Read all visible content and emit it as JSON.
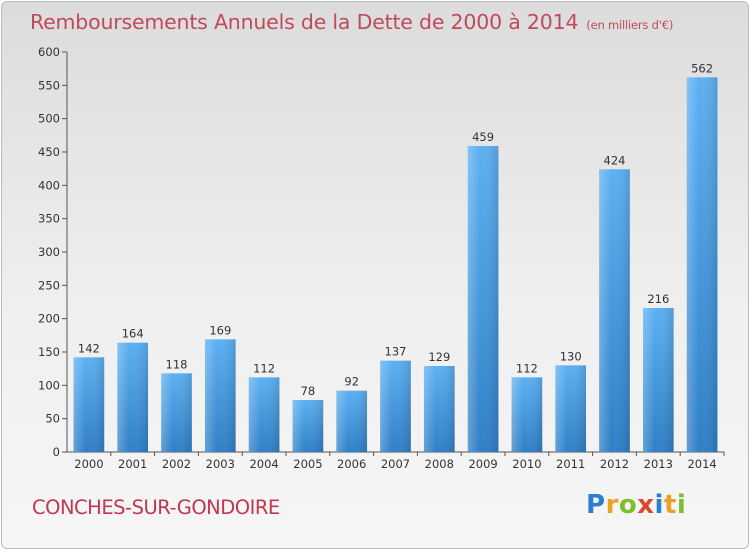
{
  "chart_data": {
    "type": "bar",
    "title": "Remboursements Annuels de la Dette de 2000 à 2014",
    "subtitle": "(en milliers d'€)",
    "categories": [
      "2000",
      "2001",
      "2002",
      "2003",
      "2004",
      "2005",
      "2006",
      "2007",
      "2008",
      "2009",
      "2010",
      "2011",
      "2012",
      "2013",
      "2014"
    ],
    "values": [
      142,
      164,
      118,
      169,
      112,
      78,
      92,
      137,
      129,
      459,
      112,
      130,
      424,
      216,
      562
    ],
    "ylim": [
      0,
      600
    ],
    "yticks": [
      0,
      50,
      100,
      150,
      200,
      250,
      300,
      350,
      400,
      450,
      500,
      550,
      600
    ],
    "grid": false,
    "legend": "none",
    "bar_color": "#3f8fd6",
    "bar_highlight": "#5aaef0"
  },
  "footer": {
    "commune": "CONCHES-SUR-GONDOIRE",
    "logo_letters": [
      {
        "ch": "P",
        "color": "#2a7fd0"
      },
      {
        "ch": "r",
        "color": "#e9a128"
      },
      {
        "ch": "o",
        "color": "#7bbf2a"
      },
      {
        "ch": "x",
        "color": "#d84a2e"
      },
      {
        "ch": "i",
        "color": "#2a7fd0"
      },
      {
        "ch": "t",
        "color": "#e9a128"
      },
      {
        "ch": "i",
        "color": "#7bbf2a"
      }
    ]
  }
}
